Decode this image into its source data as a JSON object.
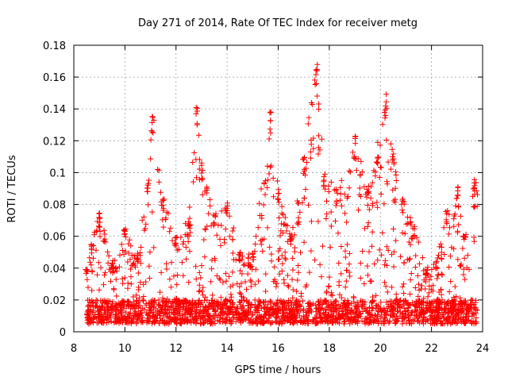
{
  "chart_data": {
    "type": "scatter",
    "title": "Day 271 of 2014, Rate Of TEC Index for receiver metg",
    "xlabel": "GPS time / hours",
    "ylabel": "ROTI / TECUs",
    "xlim": [
      8,
      24
    ],
    "ylim": [
      0,
      0.18
    ],
    "xticks": [
      "8",
      "10",
      "12",
      "14",
      "16",
      "18",
      "20",
      "22",
      "24"
    ],
    "yticks": [
      "0",
      "0.02",
      "0.04",
      "0.06",
      "0.08",
      "0.1",
      "0.12",
      "0.14",
      "0.16",
      "0.18"
    ],
    "grid": true,
    "marker": "+",
    "color": "#ff0000",
    "x_range_observed": [
      8.5,
      23.8
    ],
    "series": [
      {
        "name": "ROTI",
        "envelope": [
          {
            "x": 8.5,
            "y": 0.04
          },
          {
            "x": 8.7,
            "y": 0.055
          },
          {
            "x": 9.0,
            "y": 0.075
          },
          {
            "x": 9.5,
            "y": 0.045
          },
          {
            "x": 10.0,
            "y": 0.065
          },
          {
            "x": 10.5,
            "y": 0.05
          },
          {
            "x": 10.9,
            "y": 0.1
          },
          {
            "x": 11.1,
            "y": 0.138
          },
          {
            "x": 11.5,
            "y": 0.085
          },
          {
            "x": 12.0,
            "y": 0.06
          },
          {
            "x": 12.5,
            "y": 0.072
          },
          {
            "x": 12.8,
            "y": 0.142
          },
          {
            "x": 13.0,
            "y": 0.107
          },
          {
            "x": 13.5,
            "y": 0.075
          },
          {
            "x": 14.0,
            "y": 0.082
          },
          {
            "x": 14.5,
            "y": 0.05
          },
          {
            "x": 15.0,
            "y": 0.05
          },
          {
            "x": 15.7,
            "y": 0.139
          },
          {
            "x": 16.0,
            "y": 0.09
          },
          {
            "x": 16.5,
            "y": 0.06
          },
          {
            "x": 17.0,
            "y": 0.11
          },
          {
            "x": 17.5,
            "y": 0.175
          },
          {
            "x": 17.8,
            "y": 0.1
          },
          {
            "x": 18.3,
            "y": 0.09
          },
          {
            "x": 19.0,
            "y": 0.123
          },
          {
            "x": 19.5,
            "y": 0.09
          },
          {
            "x": 19.9,
            "y": 0.12
          },
          {
            "x": 20.2,
            "y": 0.152
          },
          {
            "x": 20.5,
            "y": 0.115
          },
          {
            "x": 20.9,
            "y": 0.084
          },
          {
            "x": 21.3,
            "y": 0.068
          },
          {
            "x": 21.8,
            "y": 0.04
          },
          {
            "x": 22.2,
            "y": 0.045
          },
          {
            "x": 22.6,
            "y": 0.077
          },
          {
            "x": 23.0,
            "y": 0.095
          },
          {
            "x": 23.3,
            "y": 0.06
          },
          {
            "x": 23.7,
            "y": 0.098
          }
        ],
        "baseline": [
          0.005,
          0.02
        ],
        "point_count_approx": 2600
      }
    ]
  }
}
